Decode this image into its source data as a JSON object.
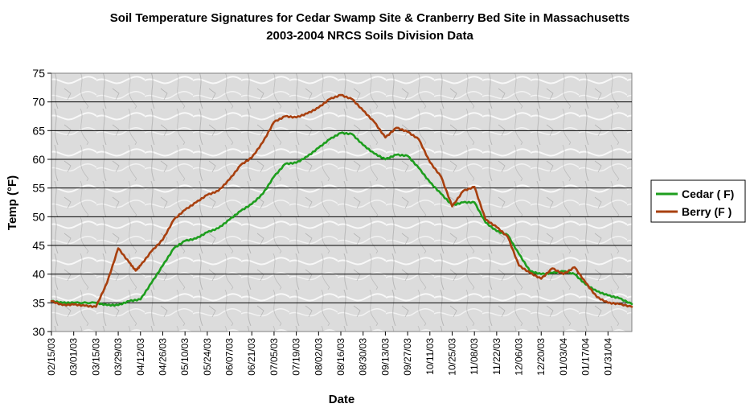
{
  "chart_data": {
    "type": "line",
    "title": "Soil Temperature Signatures for Cedar Swamp Site & Cranberry Bed Site in Massachusetts",
    "subtitle": "2003-2004 NRCS Soils Division Data",
    "xlabel": "Date",
    "ylabel": "Temp (°F)",
    "ylim": [
      30,
      75
    ],
    "yticks": [
      30,
      35,
      40,
      45,
      50,
      55,
      60,
      65,
      70,
      75
    ],
    "x_start": "2003-02-15",
    "x_end": "2004-02-15",
    "x_tick_labels": [
      "02/15/03",
      "03/01/03",
      "03/15/03",
      "03/29/03",
      "04/12/03",
      "04/26/03",
      "05/10/03",
      "05/24/03",
      "06/07/03",
      "06/21/03",
      "07/05/03",
      "07/19/03",
      "08/02/03",
      "08/16/03",
      "08/30/03",
      "09/13/03",
      "09/27/03",
      "10/11/03",
      "10/25/03",
      "11/08/03",
      "11/22/03",
      "12/06/03",
      "12/20/03",
      "01/03/04",
      "01/17/04",
      "01/31/04"
    ],
    "grid": true,
    "legend_position": "right",
    "series": [
      {
        "name": "Cedar ( F)",
        "color": "#1e9e1e",
        "points": [
          [
            "02/15/03",
            35.3
          ],
          [
            "02/22/03",
            35.0
          ],
          [
            "03/01/03",
            35.0
          ],
          [
            "03/15/03",
            35.0
          ],
          [
            "03/22/03",
            34.6
          ],
          [
            "03/29/03",
            34.6
          ],
          [
            "04/05/03",
            35.3
          ],
          [
            "04/12/03",
            35.6
          ],
          [
            "04/19/03",
            38.5
          ],
          [
            "04/26/03",
            41.5
          ],
          [
            "05/03/03",
            44.5
          ],
          [
            "05/10/03",
            45.8
          ],
          [
            "05/17/03",
            46.2
          ],
          [
            "05/24/03",
            47.3
          ],
          [
            "05/31/03",
            48.0
          ],
          [
            "06/07/03",
            49.5
          ],
          [
            "06/14/03",
            51.0
          ],
          [
            "06/21/03",
            52.2
          ],
          [
            "06/28/03",
            54.0
          ],
          [
            "07/05/03",
            57.0
          ],
          [
            "07/12/03",
            59.2
          ],
          [
            "07/19/03",
            59.4
          ],
          [
            "07/26/03",
            60.5
          ],
          [
            "08/02/03",
            62.0
          ],
          [
            "08/09/03",
            63.5
          ],
          [
            "08/16/03",
            64.6
          ],
          [
            "08/23/03",
            64.4
          ],
          [
            "08/30/03",
            62.5
          ],
          [
            "09/06/03",
            61.0
          ],
          [
            "09/13/03",
            60.0
          ],
          [
            "09/20/03",
            60.8
          ],
          [
            "09/27/03",
            60.6
          ],
          [
            "10/04/03",
            58.5
          ],
          [
            "10/11/03",
            56.0
          ],
          [
            "10/18/03",
            54.0
          ],
          [
            "10/25/03",
            52.0
          ],
          [
            "11/01/03",
            52.5
          ],
          [
            "11/08/03",
            52.5
          ],
          [
            "11/15/03",
            49.0
          ],
          [
            "11/22/03",
            47.5
          ],
          [
            "11/29/03",
            46.8
          ],
          [
            "12/06/03",
            43.5
          ],
          [
            "12/13/03",
            40.5
          ],
          [
            "12/20/03",
            40.0
          ],
          [
            "12/27/03",
            40.2
          ],
          [
            "01/03/04",
            40.5
          ],
          [
            "01/10/04",
            40.0
          ],
          [
            "01/17/04",
            38.2
          ],
          [
            "01/24/04",
            37.0
          ],
          [
            "01/31/04",
            36.3
          ],
          [
            "02/07/04",
            35.8
          ],
          [
            "02/15/04",
            34.8
          ]
        ]
      },
      {
        "name": "Berry (F )",
        "color": "#a8400f",
        "points": [
          [
            "02/15/03",
            35.3
          ],
          [
            "02/22/03",
            34.6
          ],
          [
            "03/01/03",
            34.7
          ],
          [
            "03/08/03",
            34.5
          ],
          [
            "03/15/03",
            34.3
          ],
          [
            "03/22/03",
            38.5
          ],
          [
            "03/29/03",
            44.5
          ],
          [
            "04/05/03",
            42.0
          ],
          [
            "04/09/03",
            40.6
          ],
          [
            "04/12/03",
            41.5
          ],
          [
            "04/19/03",
            44.0
          ],
          [
            "04/26/03",
            46.0
          ],
          [
            "05/03/03",
            49.5
          ],
          [
            "05/10/03",
            51.2
          ],
          [
            "05/17/03",
            52.5
          ],
          [
            "05/24/03",
            53.8
          ],
          [
            "05/31/03",
            54.5
          ],
          [
            "06/07/03",
            56.5
          ],
          [
            "06/14/03",
            59.0
          ],
          [
            "06/21/03",
            60.3
          ],
          [
            "06/28/03",
            63.0
          ],
          [
            "07/05/03",
            66.5
          ],
          [
            "07/12/03",
            67.5
          ],
          [
            "07/19/03",
            67.3
          ],
          [
            "07/26/03",
            68.0
          ],
          [
            "08/02/03",
            69.0
          ],
          [
            "08/09/03",
            70.5
          ],
          [
            "08/16/03",
            71.2
          ],
          [
            "08/23/03",
            70.5
          ],
          [
            "08/30/03",
            68.5
          ],
          [
            "09/06/03",
            66.5
          ],
          [
            "09/13/03",
            63.8
          ],
          [
            "09/20/03",
            65.5
          ],
          [
            "09/27/03",
            64.8
          ],
          [
            "10/04/03",
            63.5
          ],
          [
            "10/11/03",
            59.5
          ],
          [
            "10/18/03",
            57.0
          ],
          [
            "10/25/03",
            51.8
          ],
          [
            "11/01/03",
            54.5
          ],
          [
            "11/08/03",
            55.2
          ],
          [
            "11/15/03",
            49.5
          ],
          [
            "11/22/03",
            48.2
          ],
          [
            "11/29/03",
            46.5
          ],
          [
            "12/06/03",
            41.5
          ],
          [
            "12/13/03",
            40.2
          ],
          [
            "12/20/03",
            39.2
          ],
          [
            "12/27/03",
            41.0
          ],
          [
            "01/03/04",
            40.0
          ],
          [
            "01/10/04",
            41.2
          ],
          [
            "01/17/04",
            38.5
          ],
          [
            "01/24/04",
            36.0
          ],
          [
            "01/31/04",
            35.0
          ],
          [
            "02/07/04",
            34.8
          ],
          [
            "02/15/04",
            34.3
          ]
        ]
      }
    ]
  }
}
